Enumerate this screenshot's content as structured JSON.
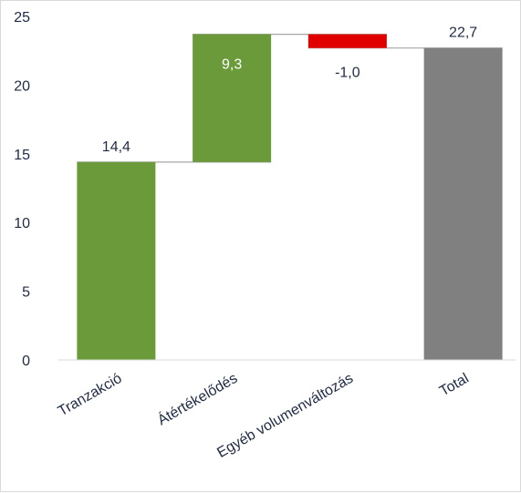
{
  "chart_data": {
    "type": "bar",
    "subtype": "waterfall",
    "categories": [
      "Tranzakció",
      "Átértékelődés",
      "Egyéb volumenváltozás",
      "Total"
    ],
    "values": [
      14.4,
      9.3,
      -1.0,
      22.7
    ],
    "labels": [
      "14,4",
      "9,3",
      "-1,0",
      "22,7"
    ],
    "kinds": [
      "increase",
      "increase",
      "decrease",
      "total"
    ],
    "ylim": [
      0,
      25
    ],
    "yticks": [
      0,
      5,
      10,
      15,
      20,
      25
    ],
    "ytick_labels": [
      "0",
      "5",
      "10",
      "15",
      "20",
      "25"
    ],
    "grid": false,
    "legend": "none",
    "colors": {
      "increase": "#6a9a3a",
      "decrease": "#e00000",
      "total": "#808080",
      "connector": "#a6a6a6",
      "axis": "#d9d9d9"
    }
  }
}
